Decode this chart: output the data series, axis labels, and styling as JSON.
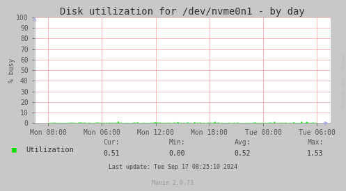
{
  "title": "Disk utilization for /dev/nvme0n1 - by day",
  "ylabel": "% busy",
  "background_color": "#c8c8c8",
  "plot_bg_color": "#ffffff",
  "grid_color": "#f08080",
  "line_color": "#00e000",
  "ylim": [
    0,
    100
  ],
  "yticks": [
    0,
    10,
    20,
    30,
    40,
    50,
    60,
    70,
    80,
    90,
    100
  ],
  "xtick_labels": [
    "Mon 00:00",
    "Mon 06:00",
    "Mon 12:00",
    "Mon 18:00",
    "Tue 00:00",
    "Tue 06:00"
  ],
  "legend_label": "Utilization",
  "cur_val": "0.51",
  "min_val": "0.00",
  "avg_val": "0.52",
  "max_val": "1.53",
  "last_update": "Last update: Tue Sep 17 08:25:10 2024",
  "munin_text": "Munin 2.0.73",
  "rrdtool_text": "RRDTOOL / TOBI OETIKER",
  "title_fontsize": 10,
  "axis_fontsize": 7,
  "legend_fontsize": 7.5,
  "small_fontsize": 6,
  "stats_label_color": "#555555",
  "stats_value_color": "#333333",
  "tick_color": "#555555",
  "arrow_color": "#aaaadd"
}
